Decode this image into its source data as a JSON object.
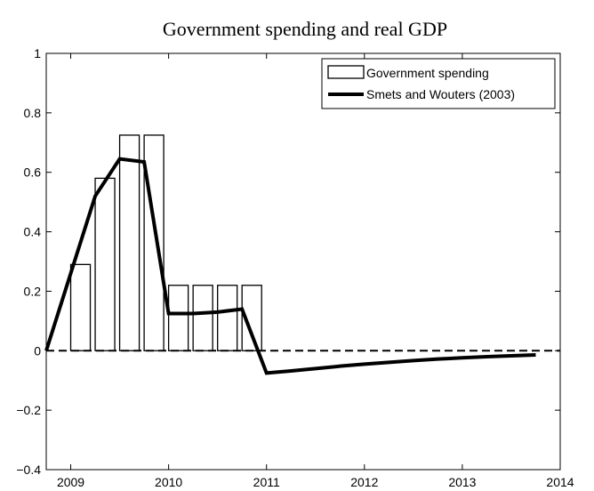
{
  "chart_data": {
    "type": "bar",
    "title": "Government spending and real GDP",
    "xlabel": "",
    "ylabel": "",
    "xlim": [
      2008.75,
      2014
    ],
    "ylim": [
      -0.4,
      1
    ],
    "grid": false,
    "legend_position": "top-right",
    "x_ticks": [
      2009,
      2010,
      2011,
      2012,
      2013,
      2014
    ],
    "x_tick_labels": [
      "2009",
      "2010",
      "2011",
      "2012",
      "2013",
      "2014"
    ],
    "y_ticks": [
      -0.4,
      -0.2,
      0,
      0.2,
      0.4,
      0.6,
      0.8,
      1
    ],
    "y_tick_labels": [
      "−0.4",
      "−0.2",
      "0",
      "0.2",
      "0.4",
      "0.6",
      "0.8",
      "1"
    ],
    "bar_width": 0.2,
    "series": [
      {
        "name": "Government spending",
        "kind": "bar",
        "x": [
          2009.0,
          2009.25,
          2009.5,
          2009.75,
          2010.0,
          2010.25,
          2010.5,
          2010.75
        ],
        "values": [
          0.29,
          0.58,
          0.725,
          0.725,
          0.22,
          0.22,
          0.22,
          0.22
        ],
        "color": "#000000"
      },
      {
        "name": "Smets and Wouters (2003)",
        "kind": "line",
        "x": [
          2008.75,
          2009.0,
          2009.25,
          2009.5,
          2009.75,
          2010.0,
          2010.25,
          2010.5,
          2010.75,
          2011.0,
          2011.25,
          2011.5,
          2011.75,
          2012.0,
          2012.25,
          2012.5,
          2012.75,
          2013.0,
          2013.25,
          2013.5,
          2013.75
        ],
        "values": [
          0.0,
          0.26,
          0.52,
          0.645,
          0.635,
          0.125,
          0.125,
          0.13,
          0.14,
          -0.075,
          -0.068,
          -0.06,
          -0.052,
          -0.045,
          -0.039,
          -0.033,
          -0.028,
          -0.024,
          -0.02,
          -0.017,
          -0.014
        ],
        "color": "#000000"
      }
    ],
    "reference_lines": [
      {
        "axis": "y",
        "value": 0,
        "style": "dashed"
      }
    ]
  }
}
